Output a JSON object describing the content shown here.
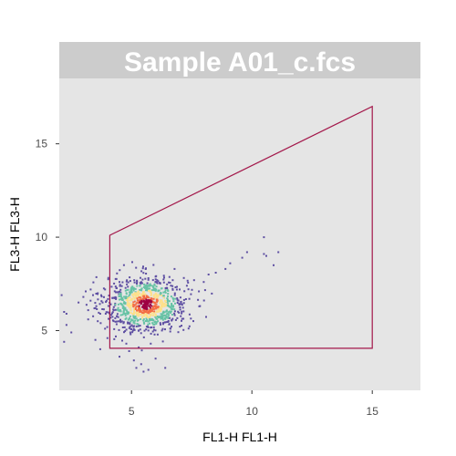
{
  "chart_data": {
    "type": "scatter",
    "title": "Sample A01_c.fcs",
    "xlabel": "FL1-H FL1-H",
    "ylabel": "FL3-H FL3-H",
    "xlim": [
      2,
      17
    ],
    "ylim": [
      1.8,
      18.5
    ],
    "xticks": [
      5,
      10,
      15
    ],
    "yticks": [
      5,
      10,
      15
    ],
    "grid": false,
    "colors": {
      "panel_bg": "#e5e5e5",
      "strip_bg": "#cccccc",
      "gate_line": "#a3174a",
      "density_low": "#5e4fa2",
      "density_mid_low": "#66c2a5",
      "density_mid": "#fee08b",
      "density_high": "#f46d43",
      "density_peak": "#9e0142"
    },
    "gate": {
      "type": "polygon",
      "vertices": [
        [
          4.1,
          4.05
        ],
        [
          4.1,
          10.1
        ],
        [
          15.0,
          17.0
        ],
        [
          15.0,
          4.05
        ]
      ]
    },
    "population": {
      "description": "main cluster",
      "center": [
        5.6,
        6.4
      ],
      "spread": [
        0.85,
        0.75
      ]
    },
    "series": [
      {
        "points": [
          [
            2.1,
            6.9
          ],
          [
            2.2,
            6.0
          ],
          [
            2.3,
            5.9
          ],
          [
            2.2,
            4.4
          ],
          [
            2.3,
            5.3
          ],
          [
            2.5,
            4.9
          ],
          [
            2.8,
            6.5
          ],
          [
            3.0,
            6.8
          ],
          [
            3.1,
            7.1
          ],
          [
            3.3,
            6.6
          ],
          [
            3.4,
            6.9
          ],
          [
            3.5,
            6.2
          ],
          [
            3.6,
            7.0
          ],
          [
            3.7,
            5.9
          ],
          [
            3.8,
            6.5
          ],
          [
            3.9,
            7.2
          ],
          [
            3.5,
            4.5
          ],
          [
            3.7,
            4.0
          ],
          [
            3.9,
            5.1
          ],
          [
            4.0,
            4.6
          ],
          [
            3.6,
            5.5
          ],
          [
            3.2,
            5.6
          ],
          [
            4.5,
            3.6
          ],
          [
            4.9,
            3.9
          ],
          [
            5.1,
            3.4
          ],
          [
            5.2,
            3.0
          ],
          [
            5.4,
            3.2
          ],
          [
            5.5,
            2.8
          ],
          [
            5.7,
            2.9
          ],
          [
            6.0,
            3.5
          ],
          [
            6.4,
            3.0
          ],
          [
            5.3,
            4.1
          ],
          [
            5.8,
            4.3
          ],
          [
            6.8,
            6.9
          ],
          [
            7.0,
            7.2
          ],
          [
            7.3,
            7.4
          ],
          [
            7.6,
            7.7
          ],
          [
            8.0,
            7.6
          ],
          [
            8.2,
            8.0
          ],
          [
            8.5,
            8.1
          ],
          [
            8.9,
            8.3
          ],
          [
            9.1,
            8.6
          ],
          [
            9.6,
            8.9
          ],
          [
            9.8,
            9.2
          ],
          [
            7.4,
            6.7
          ],
          [
            7.8,
            7.1
          ],
          [
            10.5,
            10.0
          ],
          [
            10.6,
            9.0
          ],
          [
            10.5,
            9.1
          ],
          [
            11.1,
            9.2
          ],
          [
            10.9,
            8.5
          ]
        ]
      }
    ]
  }
}
